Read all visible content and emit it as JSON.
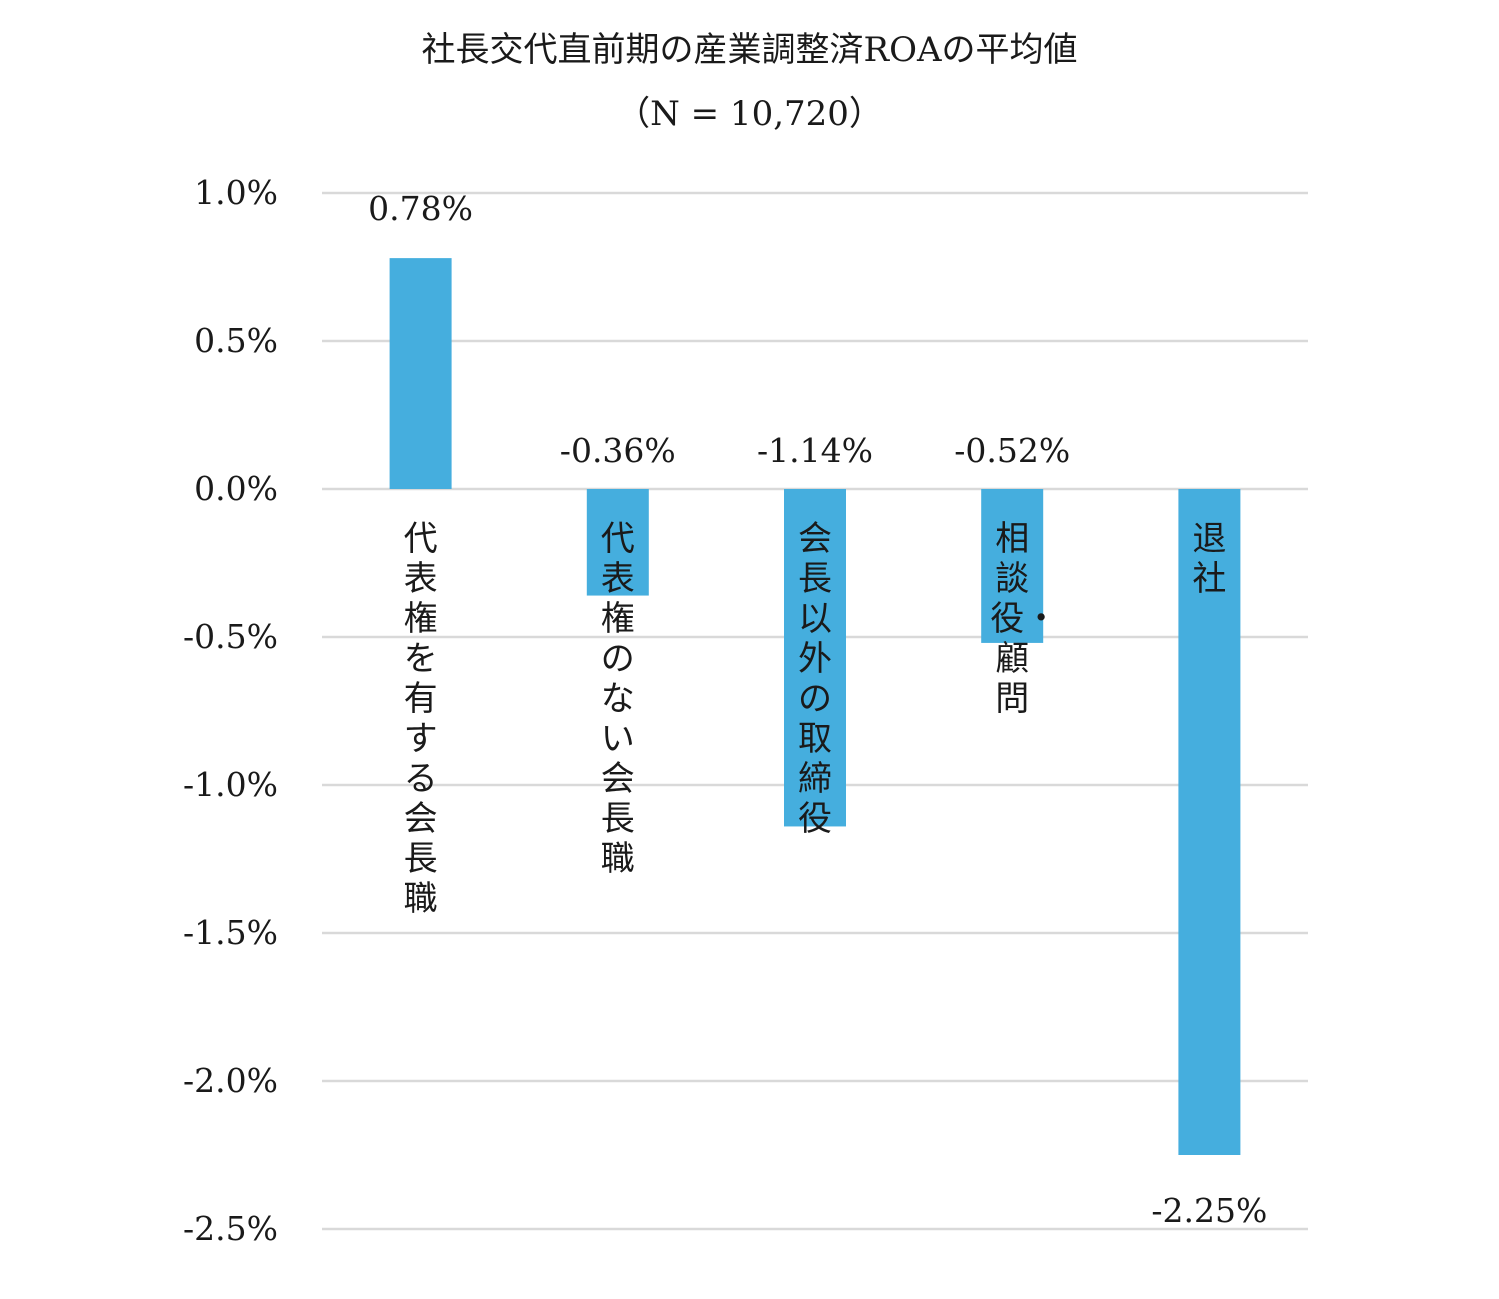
{
  "chart_data": {
    "type": "bar",
    "title": "社長交代直前期の産業調整済ROAの平均値",
    "subtitle": "（N = 10,720）",
    "categories": [
      "代表権を有する会長職",
      "代表権のない会長職",
      "会長以外の取締役",
      "相談役・顧問",
      "退社"
    ],
    "values": [
      0.78,
      -0.36,
      -1.14,
      -0.52,
      -2.25
    ],
    "value_labels": [
      "0.78%",
      "-0.36%",
      "-1.14%",
      "-0.52%",
      "-2.25%"
    ],
    "ylim": [
      -2.5,
      1.0
    ],
    "yticks": [
      1.0,
      0.5,
      0.0,
      -0.5,
      -1.0,
      -1.5,
      -2.0,
      -2.5
    ],
    "ytick_labels": [
      "1.0%",
      "0.5%",
      "0.0%",
      "-0.5%",
      "-1.0%",
      "-1.5%",
      "-2.0%",
      "-2.5%"
    ],
    "grid": true,
    "bar_color": "#45AEDE",
    "grid_color": "#D9D9D9"
  }
}
